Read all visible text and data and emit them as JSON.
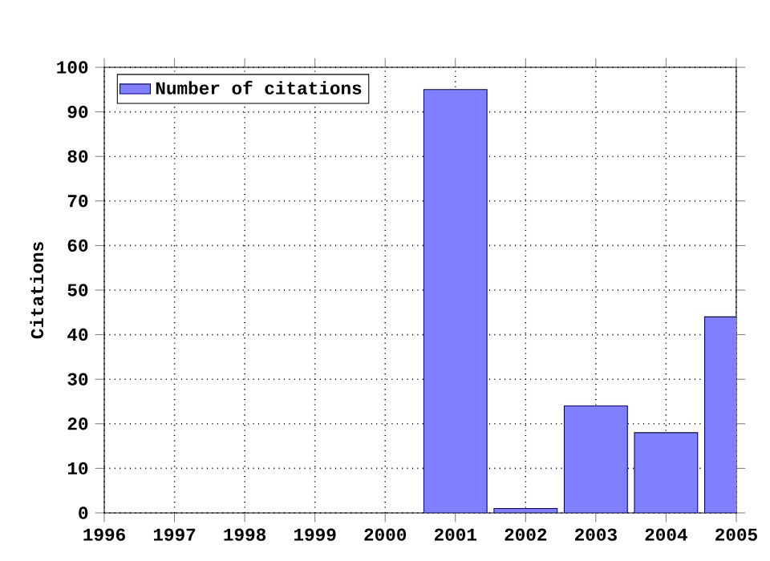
{
  "chart_data": {
    "type": "bar",
    "ylabel": "Citations",
    "x": [
      2001,
      2002,
      2003,
      2004,
      2005
    ],
    "series": [
      {
        "name": "Number of citations",
        "color": "#8080ff",
        "values": [
          95,
          1,
          24,
          18,
          44
        ]
      }
    ],
    "xlim": [
      1996,
      2005
    ],
    "xticks": [
      1996,
      1997,
      1998,
      1999,
      2000,
      2001,
      2002,
      2003,
      2004,
      2005
    ],
    "ylim": [
      0,
      100
    ],
    "yticks": [
      0,
      10,
      20,
      30,
      40,
      50,
      60,
      70,
      80,
      90,
      100
    ],
    "grid": true,
    "legend": "top left"
  }
}
